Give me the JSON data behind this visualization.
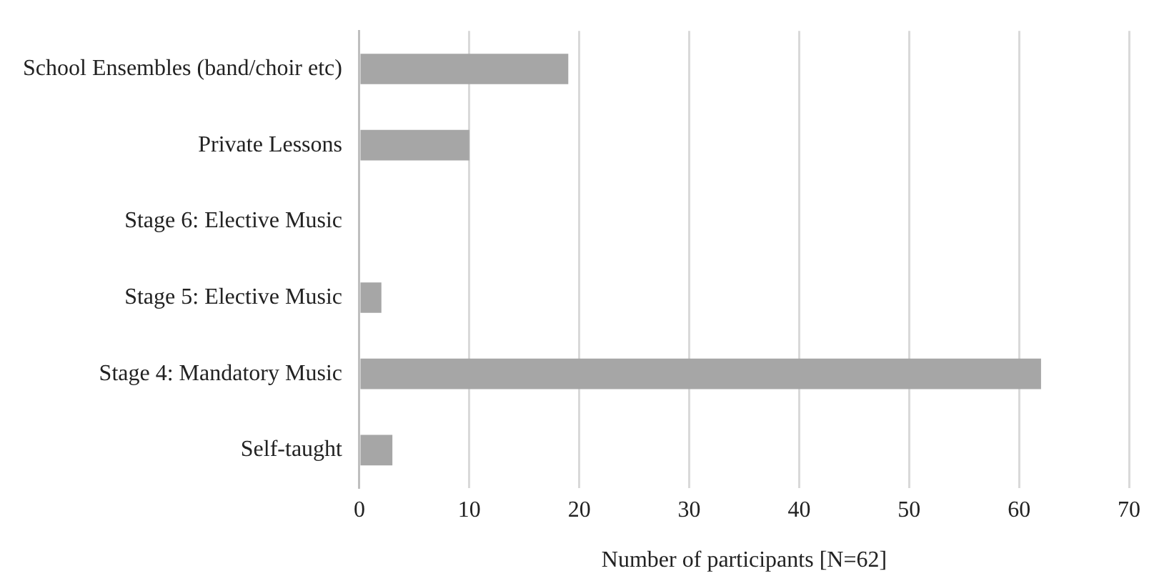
{
  "chart_data": {
    "type": "bar",
    "orientation": "horizontal",
    "xlabel": "Number of participants [N=62]",
    "categories": [
      "School Ensembles (band/choir etc)",
      "Private Lessons",
      "Stage 6: Elective Music",
      "Stage 5: Elective Music",
      "Stage 4: Mandatory Music",
      "Self-taught"
    ],
    "values": [
      19,
      10,
      0,
      2,
      62,
      3
    ],
    "color": "#a6a6a6",
    "xlim": [
      0,
      70
    ],
    "xticks": [
      0,
      10,
      20,
      30,
      40,
      50,
      60,
      70
    ],
    "grid": "x"
  }
}
